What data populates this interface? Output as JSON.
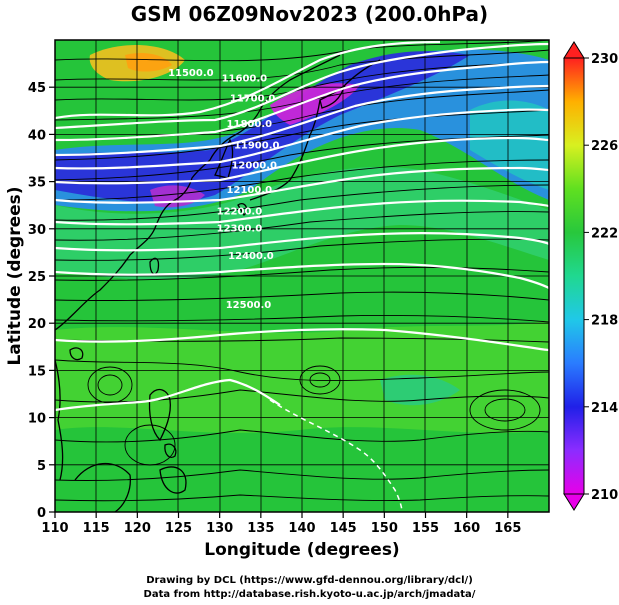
{
  "title": "GSM 06Z09Nov2023 (200.0hPa)",
  "xlabel": "Longitude (degrees)",
  "ylabel": "Latitude  (degrees)",
  "x_ticks": [
    "110",
    "115",
    "120",
    "125",
    "130",
    "135",
    "140",
    "145",
    "150",
    "155",
    "160",
    "165"
  ],
  "y_ticks": [
    "0",
    "5",
    "10",
    "15",
    "20",
    "25",
    "30",
    "35",
    "40",
    "45"
  ],
  "x_range": [
    110,
    170
  ],
  "y_range": [
    0,
    50
  ],
  "colorbar": {
    "labels": [
      "210",
      "214",
      "218",
      "222",
      "226",
      "230"
    ],
    "range": [
      210,
      230
    ]
  },
  "contour_labels": [
    {
      "text": "11500.0",
      "lon": 126.5,
      "lat": 46.2
    },
    {
      "text": "11600.0",
      "lon": 133.0,
      "lat": 45.6
    },
    {
      "text": "11700.0",
      "lon": 134.0,
      "lat": 43.5
    },
    {
      "text": "11800.0",
      "lon": 133.6,
      "lat": 40.8
    },
    {
      "text": "11900.0",
      "lon": 134.5,
      "lat": 38.5
    },
    {
      "text": "12000.0",
      "lon": 134.2,
      "lat": 36.4
    },
    {
      "text": "12100.0",
      "lon": 133.6,
      "lat": 33.8
    },
    {
      "text": "12200.0",
      "lon": 132.4,
      "lat": 31.5
    },
    {
      "text": "12300.0",
      "lon": 132.4,
      "lat": 29.7
    },
    {
      "text": "12400.0",
      "lon": 133.8,
      "lat": 26.8
    },
    {
      "text": "12500.0",
      "lon": 133.5,
      "lat": 21.6
    }
  ],
  "credits": {
    "line1": "Drawing by DCL (https://www.gfd-dennou.org/library/dcl/)",
    "line2": "Data from http://database.rish.kyoto-u.ac.jp/arch/jmadata/"
  },
  "colors": {
    "background_field": "#22c43c",
    "contour": "#ffffff",
    "coastline": "#000000",
    "vector": "#000000"
  }
}
